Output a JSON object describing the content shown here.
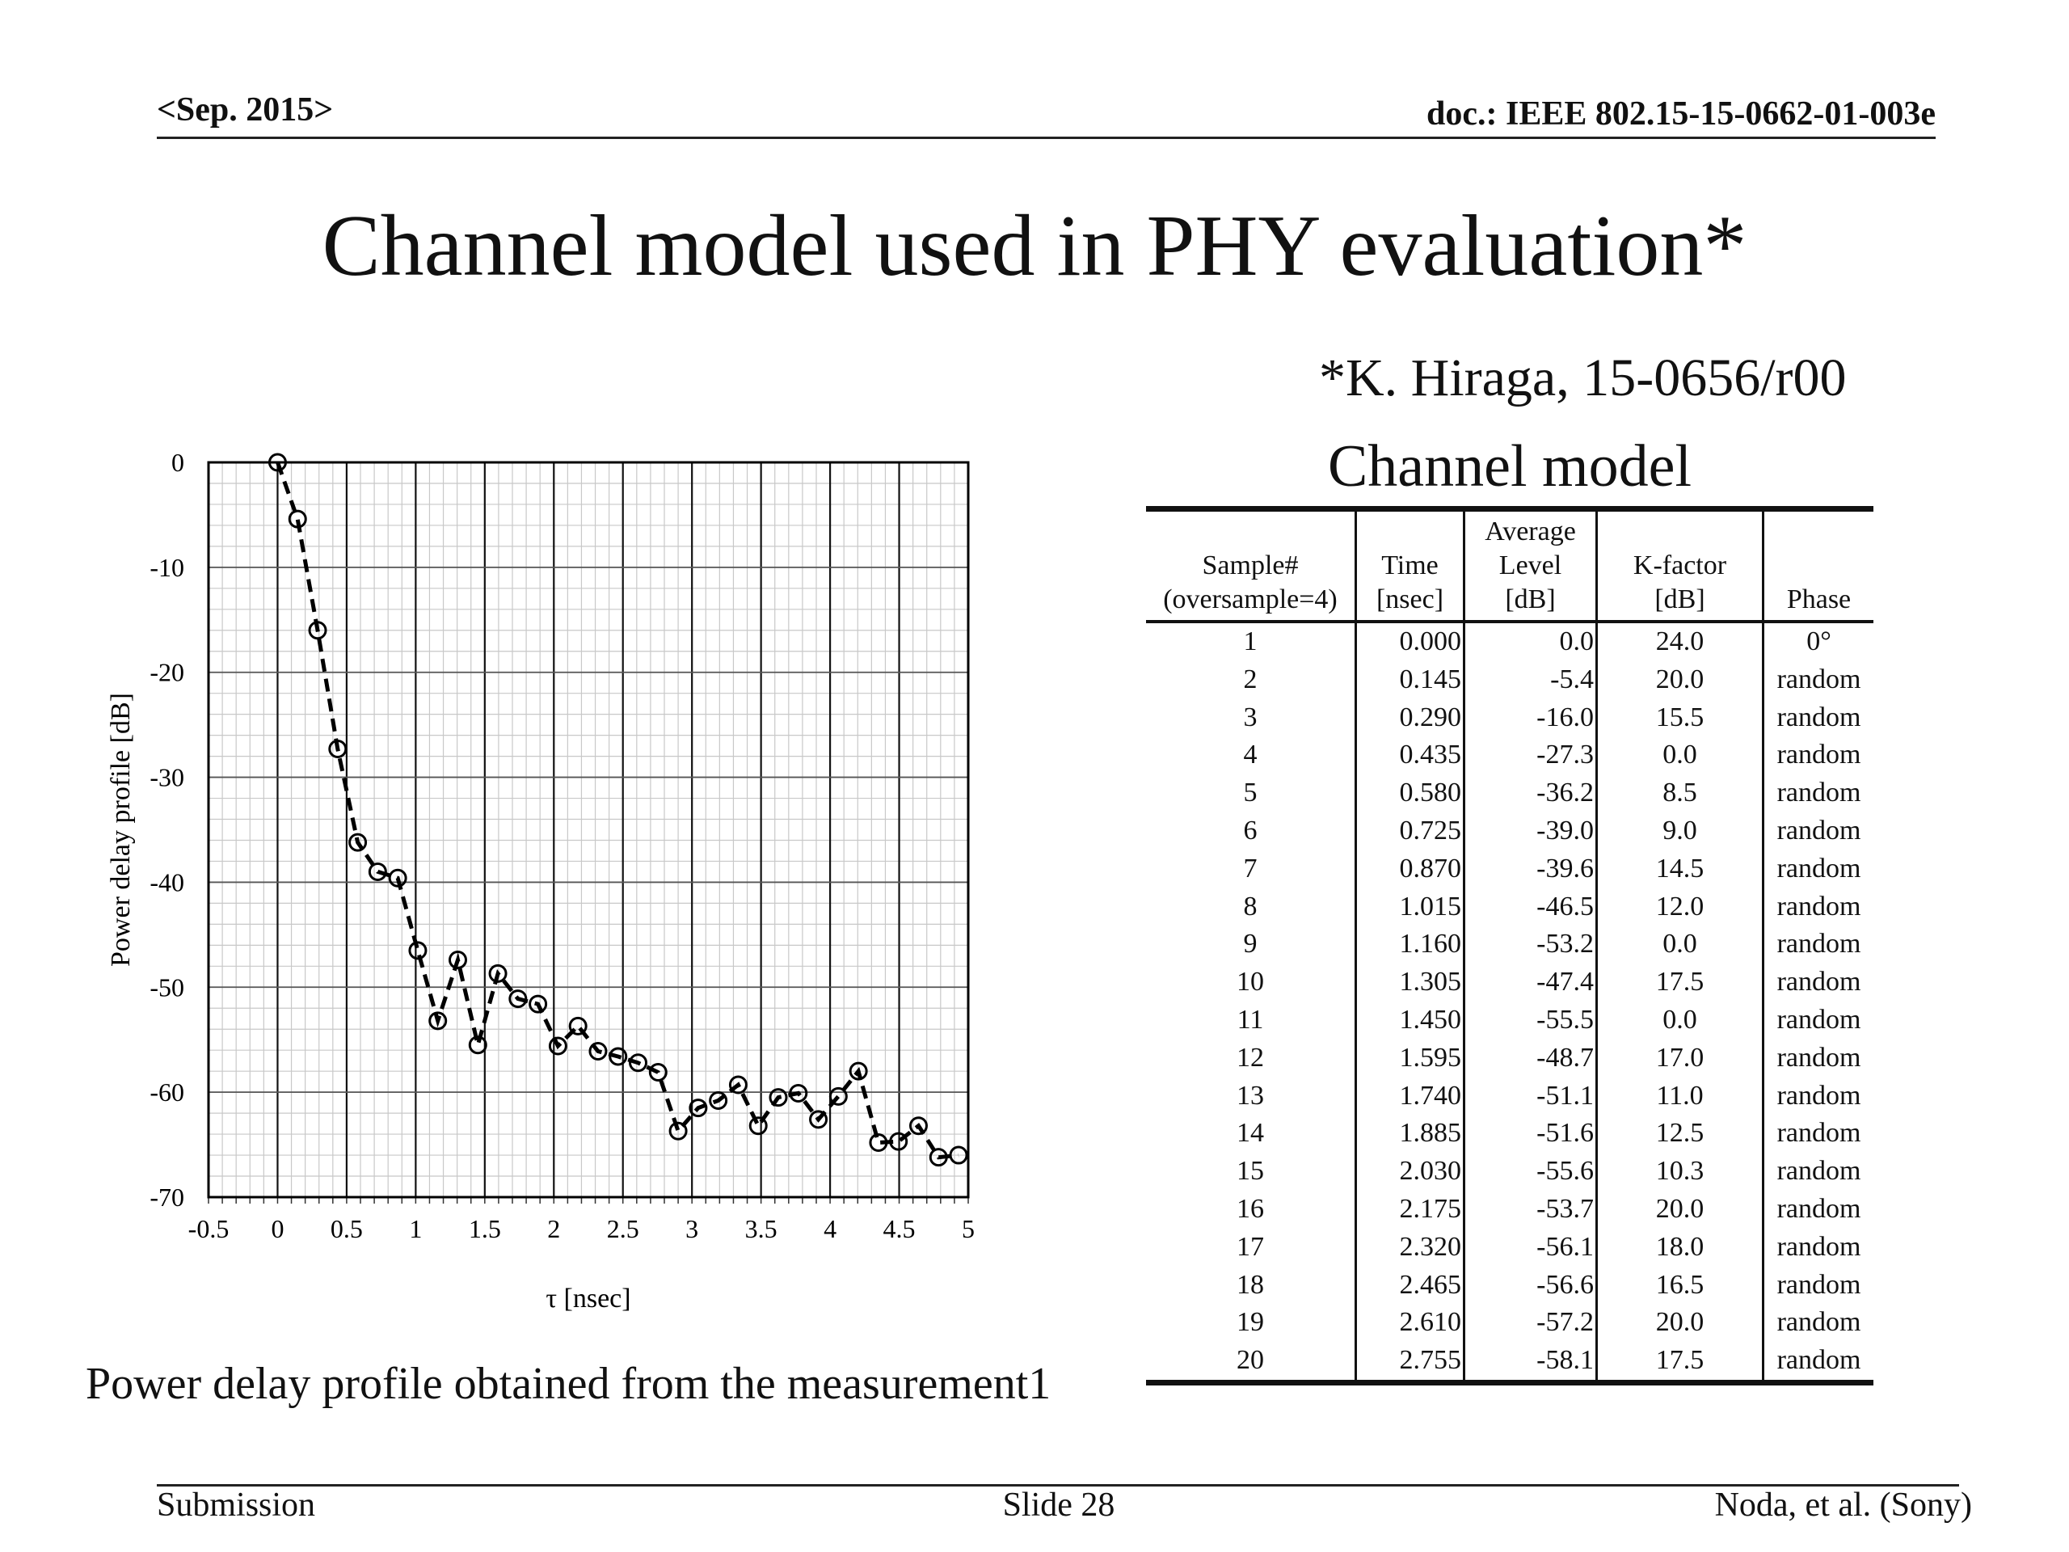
{
  "header": {
    "date": "<Sep. 2015>",
    "doc_id": "doc.: IEEE 802.15-15-0662-01-003e"
  },
  "title": "Channel model used in PHY evaluation*",
  "reference": "*K. Hiraga, 15-0656/r00",
  "caption": "Power delay profile obtained from the measurement1",
  "chart_data": {
    "type": "line",
    "xlabel": "τ [nsec]",
    "ylabel": "Power delay profile [dB]",
    "xlim": [
      -0.5,
      5
    ],
    "ylim": [
      -70,
      0
    ],
    "x_ticks": [
      "-0.5",
      "0",
      "0.5",
      "1",
      "1.5",
      "2",
      "2.5",
      "3",
      "3.5",
      "4",
      "4.5",
      "5"
    ],
    "y_ticks": [
      "0",
      "-10",
      "-20",
      "-30",
      "-40",
      "-50",
      "-60",
      "-70"
    ],
    "grid": true,
    "line_style": "dashed",
    "marker": "open-circle",
    "series": [
      {
        "x": [
          0,
          0.145,
          0.29,
          0.435,
          0.58,
          0.725,
          0.87,
          1.015,
          1.16,
          1.305,
          1.45,
          1.595,
          1.74,
          1.885,
          2.03,
          2.175,
          2.32,
          2.465,
          2.61,
          2.755,
          2.9,
          3.045,
          3.19,
          3.335,
          3.48,
          3.625,
          3.77,
          3.915,
          4.06,
          4.205,
          4.35,
          4.495,
          4.64,
          4.785,
          4.93
        ],
        "y": [
          0,
          -5.4,
          -16.0,
          -27.3,
          -36.2,
          -39.0,
          -39.6,
          -46.5,
          -53.2,
          -47.4,
          -55.5,
          -48.7,
          -51.1,
          -51.6,
          -55.6,
          -53.7,
          -56.1,
          -56.6,
          -57.2,
          -58.1,
          -63.7,
          -61.5,
          -60.8,
          -59.3,
          -63.2,
          -60.5,
          -60.1,
          -62.6,
          -60.4,
          -58.0,
          -64.8,
          -64.7,
          -63.2,
          -66.2,
          -66.0
        ]
      }
    ]
  },
  "table": {
    "title": "Channel model",
    "headers": {
      "sample": [
        "Sample#",
        "(oversample=4)"
      ],
      "time": [
        "Time",
        "[nsec]"
      ],
      "level": [
        "Average",
        "Level",
        "[dB]"
      ],
      "kfactor": [
        "K-factor",
        "[dB]"
      ],
      "phase": [
        "Phase"
      ]
    },
    "rows": [
      [
        "1",
        "0.000",
        "0.0",
        "24.0",
        "0°"
      ],
      [
        "2",
        "0.145",
        "-5.4",
        "20.0",
        "random"
      ],
      [
        "3",
        "0.290",
        "-16.0",
        "15.5",
        "random"
      ],
      [
        "4",
        "0.435",
        "-27.3",
        "0.0",
        "random"
      ],
      [
        "5",
        "0.580",
        "-36.2",
        "8.5",
        "random"
      ],
      [
        "6",
        "0.725",
        "-39.0",
        "9.0",
        "random"
      ],
      [
        "7",
        "0.870",
        "-39.6",
        "14.5",
        "random"
      ],
      [
        "8",
        "1.015",
        "-46.5",
        "12.0",
        "random"
      ],
      [
        "9",
        "1.160",
        "-53.2",
        "0.0",
        "random"
      ],
      [
        "10",
        "1.305",
        "-47.4",
        "17.5",
        "random"
      ],
      [
        "11",
        "1.450",
        "-55.5",
        "0.0",
        "random"
      ],
      [
        "12",
        "1.595",
        "-48.7",
        "17.0",
        "random"
      ],
      [
        "13",
        "1.740",
        "-51.1",
        "11.0",
        "random"
      ],
      [
        "14",
        "1.885",
        "-51.6",
        "12.5",
        "random"
      ],
      [
        "15",
        "2.030",
        "-55.6",
        "10.3",
        "random"
      ],
      [
        "16",
        "2.175",
        "-53.7",
        "20.0",
        "random"
      ],
      [
        "17",
        "2.320",
        "-56.1",
        "18.0",
        "random"
      ],
      [
        "18",
        "2.465",
        "-56.6",
        "16.5",
        "random"
      ],
      [
        "19",
        "2.610",
        "-57.2",
        "20.0",
        "random"
      ],
      [
        "20",
        "2.755",
        "-58.1",
        "17.5",
        "random"
      ]
    ]
  },
  "footer": {
    "left": "Submission",
    "center": "Slide 28",
    "right": "Noda, et al. (Sony)"
  }
}
